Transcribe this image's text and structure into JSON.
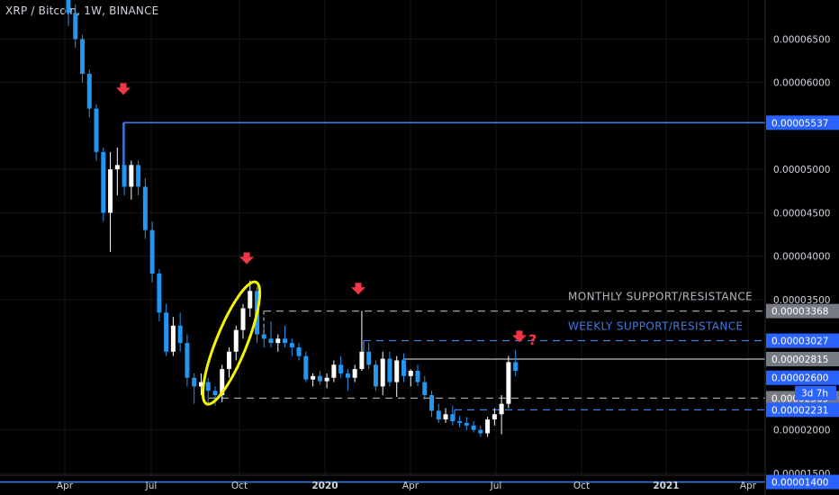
{
  "header": {
    "title": "XRP / Bitcoin, 1W, BINANCE"
  },
  "colors": {
    "background": "#000000",
    "up": "#ffffff",
    "down": "#2196f3",
    "line_blue": "#3d7be6",
    "line_gray": "#9e9e9e",
    "arrow": "#f23645",
    "ellipse": "#f5f500",
    "badge_blue": "#2962ff",
    "badge_gray": "#787b86"
  },
  "chart_data": {
    "type": "candlestick",
    "title": "XRP / Bitcoin, 1W, BINANCE",
    "y_range": [
      1.25e-05,
      6.95e-05
    ],
    "y_ticks": [
      "0.00006500",
      "0.00006000",
      "0.00005000",
      "0.00004500",
      "0.00004000",
      "0.00003500",
      "0.00002000",
      "0.00001500"
    ],
    "x_labels": [
      {
        "label": "Apr",
        "bold": false
      },
      {
        "label": "Jul",
        "bold": false
      },
      {
        "label": "Oct",
        "bold": false
      },
      {
        "label": "2020",
        "bold": true
      },
      {
        "label": "Apr",
        "bold": false
      },
      {
        "label": "Jul",
        "bold": false
      },
      {
        "label": "Oct",
        "bold": false
      },
      {
        "label": "2021",
        "bold": true
      },
      {
        "label": "Apr",
        "bold": false
      }
    ],
    "candles": [
      [
        7e-05,
        7.1e-05,
        6.65e-05,
        6.8e-05
      ],
      [
        6.8e-05,
        6.9e-05,
        6.4e-05,
        6.5e-05
      ],
      [
        6.5e-05,
        6.55e-05,
        6e-05,
        6.1e-05
      ],
      [
        6.1e-05,
        6.15e-05,
        5.6e-05,
        5.7e-05
      ],
      [
        5.7e-05,
        5.75e-05,
        5.1e-05,
        5.2e-05
      ],
      [
        5.2e-05,
        5.25e-05,
        4.4e-05,
        4.5e-05
      ],
      [
        4.5e-05,
        5.2e-05,
        4.05e-05,
        5e-05
      ],
      [
        5e-05,
        5.25e-05,
        4.7e-05,
        5.05e-05
      ],
      [
        5.05e-05,
        5.53e-05,
        4.7e-05,
        4.8e-05
      ],
      [
        4.8e-05,
        5.1e-05,
        4.65e-05,
        5.05e-05
      ],
      [
        5.05e-05,
        5.1e-05,
        4.7e-05,
        4.8e-05
      ],
      [
        4.8e-05,
        4.9e-05,
        4.2e-05,
        4.3e-05
      ],
      [
        4.3e-05,
        4.4e-05,
        3.7e-05,
        3.8e-05
      ],
      [
        3.8e-05,
        3.85e-05,
        3.25e-05,
        3.35e-05
      ],
      [
        3.35e-05,
        3.45e-05,
        2.85e-05,
        2.9e-05
      ],
      [
        2.9e-05,
        3.3e-05,
        2.85e-05,
        3.2e-05
      ],
      [
        3.2e-05,
        3.35e-05,
        2.9e-05,
        3e-05
      ],
      [
        3e-05,
        3.1e-05,
        2.5e-05,
        2.6e-05
      ],
      [
        2.6e-05,
        2.65e-05,
        2.3e-05,
        2.5e-05
      ],
      [
        2.5e-05,
        2.65e-05,
        2.4e-05,
        2.55e-05
      ],
      [
        2.55e-05,
        2.6e-05,
        2.3e-05,
        2.45e-05
      ],
      [
        2.45e-05,
        2.5e-05,
        2.28e-05,
        2.4e-05
      ],
      [
        2.4e-05,
        2.75e-05,
        2.32e-05,
        2.7e-05
      ],
      [
        2.7e-05,
        2.95e-05,
        2.6e-05,
        2.9e-05
      ],
      [
        2.9e-05,
        3.2e-05,
        2.8e-05,
        3.15e-05
      ],
      [
        3.15e-05,
        3.45e-05,
        3.05e-05,
        3.4e-05
      ],
      [
        3.4e-05,
        3.72e-05,
        3.3e-05,
        3.6e-05
      ],
      [
        3.6e-05,
        3.65e-05,
        3e-05,
        3.1e-05
      ],
      [
        3.1e-05,
        3.2e-05,
        2.95e-05,
        3.05e-05
      ],
      [
        3.05e-05,
        3.25e-05,
        2.95e-05,
        3e-05
      ],
      [
        3e-05,
        3.1e-05,
        2.9e-05,
        3.05e-05
      ],
      [
        3.05e-05,
        3.2e-05,
        2.95e-05,
        3e-05
      ],
      [
        3e-05,
        3.05e-05,
        2.85e-05,
        2.95e-05
      ],
      [
        2.95e-05,
        3e-05,
        2.8e-05,
        2.85e-05
      ],
      [
        2.85e-05,
        2.9e-05,
        2.55e-05,
        2.58e-05
      ],
      [
        2.58e-05,
        2.65e-05,
        2.5e-05,
        2.62e-05
      ],
      [
        2.62e-05,
        2.68e-05,
        2.52e-05,
        2.56e-05
      ],
      [
        2.56e-05,
        2.65e-05,
        2.48e-05,
        2.6e-05
      ],
      [
        2.6e-05,
        2.8e-05,
        2.55e-05,
        2.75e-05
      ],
      [
        2.75e-05,
        2.85e-05,
        2.6e-05,
        2.65e-05
      ],
      [
        2.65e-05,
        2.7e-05,
        2.45e-05,
        2.6e-05
      ],
      [
        2.6e-05,
        2.75e-05,
        2.55e-05,
        2.7e-05
      ],
      [
        2.7e-05,
        3.37e-05,
        2.68e-05,
        2.9e-05
      ],
      [
        2.9e-05,
        3e-05,
        2.7e-05,
        2.75e-05
      ],
      [
        2.75e-05,
        2.8e-05,
        2.45e-05,
        2.5e-05
      ],
      [
        2.5e-05,
        2.9e-05,
        2.4e-05,
        2.82e-05
      ],
      [
        2.82e-05,
        2.9e-05,
        2.5e-05,
        2.55e-05
      ],
      [
        2.55e-05,
        2.85e-05,
        2.38e-05,
        2.8e-05
      ],
      [
        2.8e-05,
        2.88e-05,
        2.55e-05,
        2.62e-05
      ],
      [
        2.62e-05,
        2.7e-05,
        2.5e-05,
        2.68e-05
      ],
      [
        2.68e-05,
        2.75e-05,
        2.5e-05,
        2.55e-05
      ],
      [
        2.55e-05,
        2.62e-05,
        2.35e-05,
        2.4e-05
      ],
      [
        2.4e-05,
        2.45e-05,
        2.15e-05,
        2.22e-05
      ],
      [
        2.22e-05,
        2.3e-05,
        2.08e-05,
        2.12e-05
      ],
      [
        2.12e-05,
        2.25e-05,
        2.08e-05,
        2.18e-05
      ],
      [
        2.18e-05,
        2.28e-05,
        2.05e-05,
        2.1e-05
      ],
      [
        2.1e-05,
        2.16e-05,
        2.03e-05,
        2.08e-05
      ],
      [
        2.08e-05,
        2.15e-05,
        2e-05,
        2.05e-05
      ],
      [
        2.05e-05,
        2.1e-05,
        1.97e-05,
        2e-05
      ],
      [
        2e-05,
        2.05e-05,
        1.92e-05,
        1.96e-05
      ],
      [
        1.96e-05,
        2.15e-05,
        1.92e-05,
        2.12e-05
      ],
      [
        2.12e-05,
        2.25e-05,
        2.05e-05,
        2.18e-05
      ],
      [
        2.18e-05,
        2.4e-05,
        1.95e-05,
        2.3e-05
      ],
      [
        2.3e-05,
        2.85e-05,
        2.25e-05,
        2.78e-05
      ],
      [
        2.78e-05,
        2.92e-05,
        2.62e-05,
        2.68e-05
      ]
    ],
    "levels": [
      {
        "value": 5.537e-05,
        "label": "0.00005537",
        "style": "solid",
        "color": "blue",
        "badge": "blue"
      },
      {
        "value": 3.368e-05,
        "label": "0.00003368",
        "style": "dashed",
        "color": "gray",
        "badge": "gray"
      },
      {
        "value": 3.027e-05,
        "label": "0.00003027",
        "style": "dashed",
        "color": "blue",
        "badge": "blue"
      },
      {
        "value": 2.815e-05,
        "label": "0.00002815",
        "style": "solid",
        "color": "gray",
        "badge": "gray"
      },
      {
        "value": 2.6e-05,
        "label": "0.00002600",
        "style": "none",
        "color": "blue",
        "badge": "blue"
      },
      {
        "value": 2.365e-05,
        "label": "0.00002365",
        "style": "dashed",
        "color": "gray",
        "badge": "gray"
      },
      {
        "value": 2.231e-05,
        "label": "0.00002231",
        "style": "dashed",
        "color": "blue",
        "badge": "blue"
      },
      {
        "value": 1.4e-05,
        "label": "0.00001400",
        "style": "solid",
        "color": "blue",
        "badge": "blue"
      }
    ],
    "countdown": "3d 7h",
    "annotations": [
      {
        "text": "MONTHLY SUPPORT/RESISTANCE",
        "color": "gray"
      },
      {
        "text": "WEEKLY SUPPORT/RESISTANCE",
        "color": "blue"
      },
      {
        "text": "?",
        "color": "red"
      }
    ]
  }
}
